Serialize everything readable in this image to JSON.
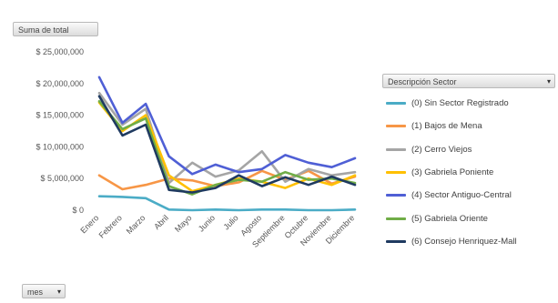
{
  "field_buttons": {
    "value_field": "Suma de total",
    "category_field": "mes",
    "series_field": "Descripción Sector"
  },
  "chart_data": {
    "type": "line",
    "categories": [
      "Enero",
      "Febrero",
      "Marzo",
      "Abril",
      "Mayo",
      "Junio",
      "Julio",
      "Agosto",
      "Septiembre",
      "Octubre",
      "Noviembre",
      "Diciembre"
    ],
    "y_ticks": [
      "$ 25,000,000",
      "$ 20,000,000",
      "$ 15,000,000",
      "$ 10,000,000",
      "$ 5,000,000",
      "$ 0"
    ],
    "ylim": [
      0,
      25000000
    ],
    "grid": false,
    "legend_position": "right",
    "series": [
      {
        "name": "(0) Sin Sector Registrado",
        "color": "#4bacc6",
        "values": [
          2200000,
          2100000,
          1900000,
          100000,
          0,
          100000,
          0,
          100000,
          100000,
          0,
          0,
          100000
        ]
      },
      {
        "name": "(1) Bajos de Mena",
        "color": "#f79646",
        "values": [
          5500000,
          3300000,
          4000000,
          5000000,
          4700000,
          3800000,
          4400000,
          6200000,
          4800000,
          6200000,
          4200000,
          5300000
        ]
      },
      {
        "name": "(2) Cerro Viejos",
        "color": "#a5a5a5",
        "values": [
          18500000,
          13500000,
          16000000,
          4300000,
          7500000,
          5300000,
          6300000,
          9300000,
          4500000,
          6500000,
          5500000,
          6000000
        ]
      },
      {
        "name": "(3) Gabriela Poniente",
        "color": "#ffc000",
        "values": [
          17000000,
          12500000,
          15000000,
          5500000,
          3000000,
          4000000,
          5000000,
          4500000,
          3500000,
          5000000,
          4000000,
          5500000
        ]
      },
      {
        "name": "(4) Sector Antiguo-Central",
        "color": "#4f5fd5",
        "values": [
          21000000,
          13800000,
          16800000,
          8500000,
          5700000,
          7200000,
          6000000,
          6500000,
          8700000,
          7500000,
          6800000,
          8200000
        ]
      },
      {
        "name": "(5) Gabriela Oriente",
        "color": "#70ad47",
        "values": [
          17200000,
          12800000,
          14500000,
          3800000,
          2500000,
          4000000,
          4800000,
          4500000,
          6000000,
          4800000,
          5000000,
          4300000
        ]
      },
      {
        "name": "(6) Consejo Henriquez-Mall",
        "color": "#1f3a60",
        "values": [
          18000000,
          11800000,
          13500000,
          3200000,
          2800000,
          3500000,
          5500000,
          3800000,
          5200000,
          4000000,
          5300000,
          4000000
        ]
      }
    ]
  }
}
